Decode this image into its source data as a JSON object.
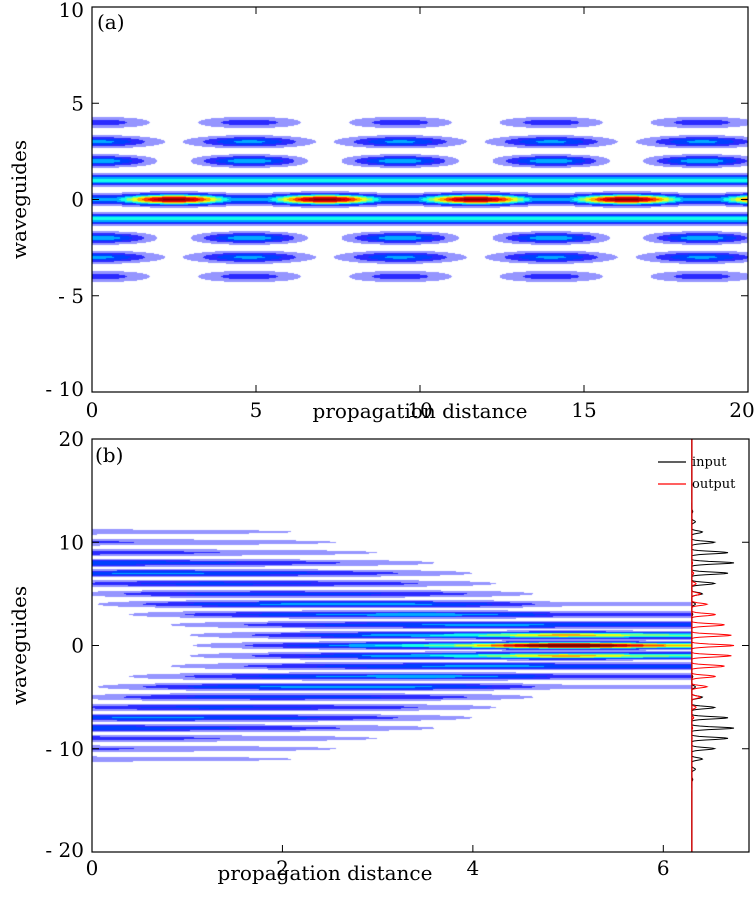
{
  "chart_data": [
    {
      "type": "heatmap",
      "panel_label": "(a)",
      "xlabel": "propagation distance",
      "ylabel": "waveguides",
      "xlim": [
        0,
        20
      ],
      "ylim": [
        -10,
        10
      ],
      "xticks": [
        0,
        5,
        10,
        15,
        20
      ],
      "xtick_labels": [
        "0",
        "5",
        "10",
        "15",
        "20"
      ],
      "yticks": [
        10,
        5,
        0,
        -5,
        -10
      ],
      "ytick_labels": [
        "10",
        "5",
        "0",
        "- 5",
        "- 10"
      ],
      "colormap": [
        "#ffffff",
        "#0000ff",
        "#00ffff",
        "#ffff00",
        "#ff0000",
        "#800000"
      ],
      "waveguides": [
        -4,
        -3,
        -2,
        -1,
        0,
        1,
        2,
        3,
        4
      ],
      "breathing_period": 4.6,
      "peak_positions_center": [
        2.5,
        7.0,
        11.6,
        16.5
      ]
    },
    {
      "type": "heatmap",
      "panel_label": "(b)",
      "xlabel": "propagation distance",
      "ylabel": "waveguides",
      "xlim": [
        0,
        6.3
      ],
      "ylim": [
        -20,
        20
      ],
      "xticks": [
        0,
        2,
        4,
        6
      ],
      "xtick_labels": [
        "0",
        "2",
        "4",
        "6"
      ],
      "yticks": [
        20,
        10,
        0,
        -10,
        -20
      ],
      "ytick_labels": [
        "20",
        "10",
        "0",
        "- 10",
        "- 20"
      ],
      "colormap": [
        "#ffffff",
        "#0000ff",
        "#00ffff",
        "#ffff00",
        "#ff0000",
        "#800000"
      ],
      "input_beam_centers": [
        -8,
        8
      ],
      "focus_distance": 5.0,
      "legend": {
        "position": "top-right",
        "entries": [
          {
            "label": "input",
            "color": "#000000"
          },
          {
            "label": "output",
            "color": "#ff0000"
          }
        ]
      },
      "profile_series": [
        {
          "name": "input",
          "color": "#000000",
          "centers": [
            -8,
            8
          ],
          "width": 1.8
        },
        {
          "name": "output",
          "color": "#ff0000",
          "centers": [
            0
          ],
          "width": 2.8
        }
      ]
    }
  ]
}
